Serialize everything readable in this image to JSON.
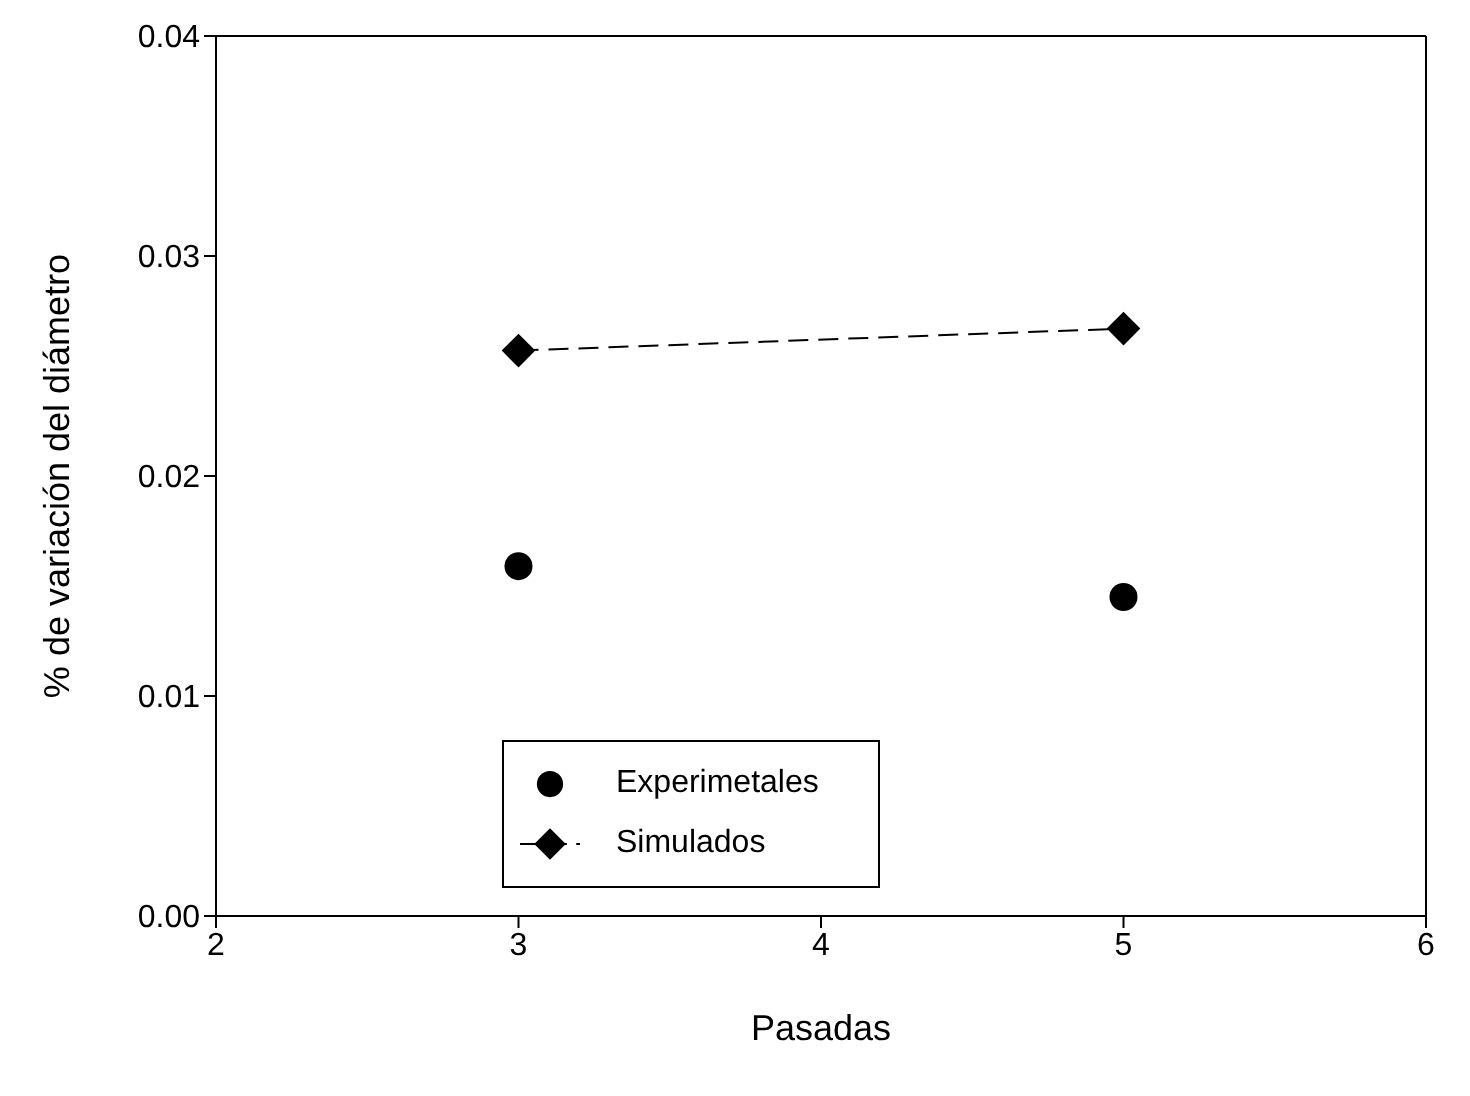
{
  "chart_data": {
    "type": "scatter",
    "xlabel": "Pasadas",
    "ylabel": "% de variación del diámetro",
    "x": [
      3,
      5
    ],
    "series": [
      {
        "name": "Experimetales",
        "color": "#000000",
        "marker": "circle",
        "values": [
          0.0159,
          0.0145
        ]
      },
      {
        "name": "Simulados",
        "type": "line",
        "color": "#000000",
        "marker": "diamond",
        "line_style": "dashed",
        "values": [
          0.0257,
          0.0267
        ]
      }
    ],
    "xlim": [
      2,
      6
    ],
    "xticks": [
      2,
      3,
      4,
      5,
      6
    ],
    "ylim": [
      0,
      0.04
    ],
    "yticks": [
      {
        "value": 0,
        "label": "0.00"
      },
      {
        "value": 0.01,
        "label": "0.01"
      },
      {
        "value": 0.02,
        "label": "0.02"
      },
      {
        "value": 0.03,
        "label": "0.03"
      },
      {
        "value": 0.04,
        "label": "0.04"
      }
    ],
    "grid": false,
    "legend": "bottom left"
  }
}
